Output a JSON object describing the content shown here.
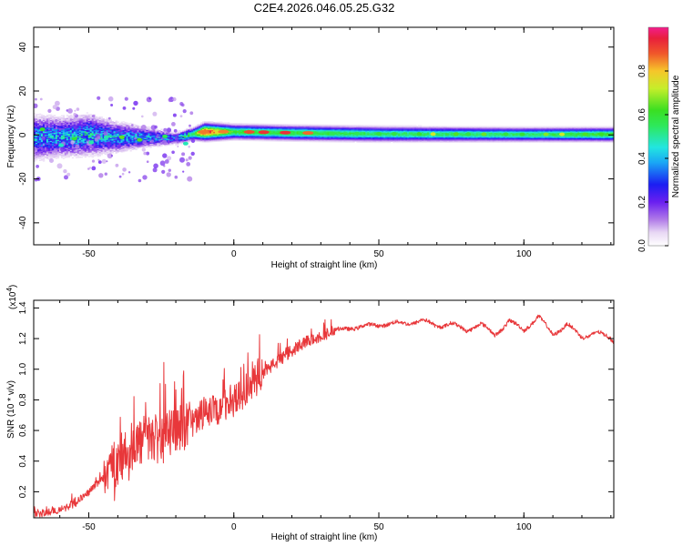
{
  "chart_data": [
    {
      "type": "heatmap",
      "title": "C2E4.2026.046.05.25.G32",
      "xlabel": "Height of straight line (km)",
      "ylabel": "Frequency (Hz)",
      "xlim": [
        -69,
        131
      ],
      "ylim": [
        -50,
        49
      ],
      "xticks": [
        -50,
        0,
        50,
        100
      ],
      "yticks": [
        -40,
        -20,
        0,
        20,
        40
      ],
      "colorbar": {
        "label": "Normalized spectral amplitude",
        "ticks": [
          "0.0",
          "0.2",
          "0.4",
          "0.6",
          "0.8"
        ],
        "range": [
          0,
          1
        ]
      },
      "band": {
        "x": [
          -69,
          -60,
          -50,
          -40,
          -30,
          -20,
          -14,
          -10,
          0,
          20,
          50,
          100,
          131
        ],
        "center_hz": [
          -1,
          -1,
          0,
          -1,
          -1,
          -1.5,
          0.5,
          1.5,
          1.5,
          1.0,
          0.5,
          0.3,
          0.3
        ],
        "half_width_hz": [
          9,
          8,
          8,
          6,
          4,
          2.5,
          2.5,
          3.5,
          3,
          3,
          3,
          2.8,
          2.8
        ],
        "peak_amplitude": [
          0.35,
          0.35,
          0.4,
          0.35,
          0.35,
          0.3,
          0.55,
          0.95,
          0.6,
          0.6,
          0.55,
          0.55,
          0.6
        ]
      }
    },
    {
      "type": "line",
      "xlabel": "Height of straight line (km)",
      "ylabel": "SNR (10 * v/v)",
      "exponent_label": "(x10",
      "exponent_value": "4",
      "xlim": [
        -69,
        131
      ],
      "ylim": [
        0.03,
        1.45
      ],
      "xticks": [
        -50,
        0,
        50,
        100
      ],
      "yticks": [
        "0.2",
        "0.4",
        "0.6",
        "0.8",
        "1.0",
        "1.2",
        "1.4"
      ],
      "color": "#e8373a",
      "series": [
        {
          "name": "SNR",
          "x": [
            -69,
            -65,
            -60,
            -55,
            -50,
            -45,
            -40,
            -35,
            -30,
            -25,
            -20,
            -15,
            -10,
            -5,
            0,
            5,
            10,
            15,
            20,
            25,
            30,
            35,
            40,
            45,
            50,
            55,
            60,
            65,
            70,
            75,
            80,
            85,
            90,
            95,
            100,
            105,
            110,
            115,
            120,
            125,
            131
          ],
          "y": [
            0.06,
            0.06,
            0.08,
            0.12,
            0.2,
            0.3,
            0.4,
            0.5,
            0.55,
            0.55,
            0.6,
            0.65,
            0.7,
            0.75,
            0.8,
            0.88,
            0.98,
            1.05,
            1.12,
            1.18,
            1.22,
            1.25,
            1.27,
            1.28,
            1.29,
            1.3,
            1.3,
            1.32,
            1.28,
            1.3,
            1.25,
            1.3,
            1.22,
            1.32,
            1.25,
            1.35,
            1.22,
            1.3,
            1.2,
            1.25,
            1.18
          ]
        }
      ]
    }
  ]
}
